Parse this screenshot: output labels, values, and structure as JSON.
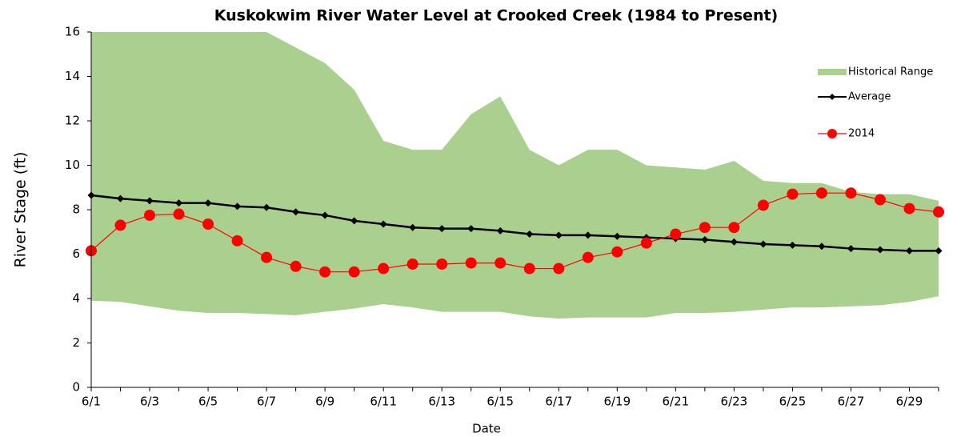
{
  "chart_data": {
    "type": "line",
    "title": "Kuskokwim River Water Level at Crooked Creek (1984 to Present)",
    "x_label": "Date",
    "y_label": "River Stage (ft)",
    "categories": [
      "6/1",
      null,
      "6/3",
      null,
      "6/5",
      null,
      "6/7",
      null,
      "6/9",
      null,
      "6/11",
      null,
      "6/13",
      null,
      "6/15",
      null,
      "6/17",
      null,
      "6/19",
      null,
      "6/21",
      null,
      "6/23",
      null,
      "6/25",
      null,
      "6/27",
      null,
      "6/29",
      null
    ],
    "ylim": [
      0,
      16
    ],
    "yticks": [
      0,
      2,
      4,
      6,
      8,
      10,
      12,
      14,
      16
    ],
    "grid": false,
    "legend": "upper right",
    "series": [
      {
        "name": "Historical Range",
        "color": "#a9d08e",
        "type": "band",
        "high": [
          16,
          16,
          16,
          16,
          16,
          16,
          16,
          15.3,
          14.6,
          13.4,
          11.1,
          10.7,
          10.7,
          12.3,
          13.1,
          10.7,
          10.0,
          10.7,
          10.7,
          10.0,
          9.9,
          9.8,
          10.2,
          9.3,
          9.2,
          9.2,
          8.8,
          8.7,
          8.7,
          8.4
        ],
        "low": [
          3.9,
          3.85,
          3.65,
          3.45,
          3.35,
          3.35,
          3.3,
          3.25,
          3.4,
          3.55,
          3.75,
          3.6,
          3.4,
          3.4,
          3.4,
          3.2,
          3.1,
          3.15,
          3.15,
          3.15,
          3.35,
          3.35,
          3.4,
          3.5,
          3.6,
          3.6,
          3.65,
          3.7,
          3.85,
          4.1
        ]
      },
      {
        "name": "Average",
        "color": "#000000",
        "marker": "diamond",
        "values": [
          8.65,
          8.5,
          8.4,
          8.3,
          8.3,
          8.15,
          8.1,
          7.9,
          7.75,
          7.5,
          7.35,
          7.2,
          7.15,
          7.15,
          7.05,
          6.9,
          6.85,
          6.85,
          6.8,
          6.75,
          6.7,
          6.65,
          6.55,
          6.45,
          6.4,
          6.35,
          6.25,
          6.2,
          6.15,
          6.15
        ]
      },
      {
        "name": "2014",
        "color": "#ff0000",
        "marker": "circle",
        "values": [
          6.15,
          7.3,
          7.75,
          7.8,
          7.35,
          6.6,
          5.85,
          5.45,
          5.2,
          5.2,
          5.35,
          5.55,
          5.55,
          5.6,
          5.6,
          5.35,
          5.35,
          5.85,
          6.1,
          6.5,
          6.9,
          7.2,
          7.2,
          8.2,
          8.7,
          8.75,
          8.75,
          8.45,
          8.05,
          7.9
        ]
      }
    ]
  }
}
